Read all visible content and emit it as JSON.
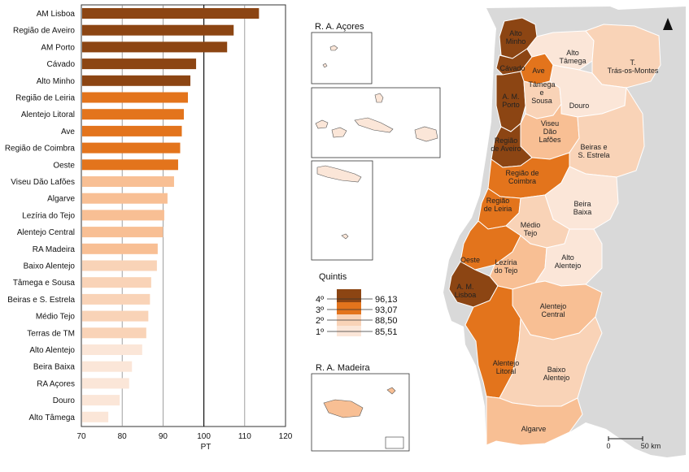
{
  "chart_data": {
    "type": "bar",
    "orientation": "horizontal",
    "xlabel": "PT",
    "xlim": [
      70,
      120
    ],
    "xticks": [
      70,
      80,
      90,
      100,
      110,
      120
    ],
    "reference_line": 100,
    "categories": [
      "AM Lisboa",
      "Região de Aveiro",
      "AM Porto",
      "Cávado",
      "Alto Minho",
      "Região de Leiria",
      "Alentejo Litoral",
      "Ave",
      "Região de Coimbra",
      "Oeste",
      "Viseu Dão Lafões",
      "Algarve",
      "Lezíria do Tejo",
      "Alentejo Central",
      "RA Madeira",
      "Baixo Alentejo",
      "Tâmega e Sousa",
      "Beiras e S. Estrela",
      "Médio Tejo",
      "Terras de TM",
      "Alto Alentejo",
      "Beira Baixa",
      "RA Açores",
      "Douro",
      "Alto Tâmega"
    ],
    "values": [
      113.5,
      107.3,
      105.7,
      98.1,
      96.7,
      96.1,
      95.1,
      94.6,
      94.2,
      93.7,
      92.7,
      91.1,
      90.3,
      90.0,
      88.7,
      88.5,
      87.1,
      86.8,
      86.4,
      85.9,
      84.9,
      82.4,
      81.7,
      79.4,
      76.6
    ],
    "quintile": [
      4,
      4,
      4,
      4,
      4,
      3,
      3,
      3,
      3,
      3,
      2,
      2,
      2,
      2,
      2,
      1,
      1,
      1,
      1,
      1,
      0,
      0,
      0,
      0,
      0
    ]
  },
  "palette": [
    "#fbe6d8",
    "#f9d3b7",
    "#f8bf94",
    "#e3741c",
    "#8c4513"
  ],
  "legend": {
    "title": "Quintis",
    "items": [
      {
        "label": "4º",
        "value": "96,13"
      },
      {
        "label": "3º",
        "value": "93,07"
      },
      {
        "label": "2º",
        "value": "88,50"
      },
      {
        "label": "1º",
        "value": "85,51"
      }
    ]
  },
  "map": {
    "inset_acores": "R. A. Açores",
    "inset_madeira": "R. A. Madeira",
    "scale_start": "0",
    "scale_end": "50 km",
    "regions": [
      {
        "name": "Alto Minho",
        "lines": [
          "Alto",
          "Minho"
        ],
        "q": 4
      },
      {
        "name": "Cávado",
        "lines": [
          "Cávado"
        ],
        "q": 4
      },
      {
        "name": "Ave",
        "lines": [
          "Ave"
        ],
        "q": 3
      },
      {
        "name": "Alto Tâmega",
        "lines": [
          "Alto",
          "Tâmega"
        ],
        "q": 0
      },
      {
        "name": "T. Trás-os-Montes",
        "lines": [
          "T.",
          "Trás-os-Montes"
        ],
        "q": 1
      },
      {
        "name": "A. M. Porto",
        "lines": [
          "A. M.",
          "Porto"
        ],
        "q": 4
      },
      {
        "name": "Tâmega e Sousa",
        "lines": [
          "Tâmega",
          "e",
          "Sousa"
        ],
        "q": 1
      },
      {
        "name": "Douro",
        "lines": [
          "Douro"
        ],
        "q": 0
      },
      {
        "name": "Viseu Dão Lafões",
        "lines": [
          "Viseu",
          "Dão",
          "Lafões"
        ],
        "q": 2
      },
      {
        "name": "Beiras e S. Estrela",
        "lines": [
          "Beiras e",
          "S. Estrela"
        ],
        "q": 1
      },
      {
        "name": "Região de Aveiro",
        "lines": [
          "Região",
          "de Aveiro"
        ],
        "q": 4
      },
      {
        "name": "Região de Coimbra",
        "lines": [
          "Região de",
          "Coimbra"
        ],
        "q": 3
      },
      {
        "name": "Região de Leiria",
        "lines": [
          "Região",
          "de Leiria"
        ],
        "q": 3
      },
      {
        "name": "Beira Baixa",
        "lines": [
          "Beira",
          "Baixa"
        ],
        "q": 0
      },
      {
        "name": "Médio Tejo",
        "lines": [
          "Médio",
          "Tejo"
        ],
        "q": 1
      },
      {
        "name": "Oeste",
        "lines": [
          "Oeste"
        ],
        "q": 3
      },
      {
        "name": "Lezíria do Tejo",
        "lines": [
          "Lezíria",
          "do Tejo"
        ],
        "q": 2
      },
      {
        "name": "Alto Alentejo",
        "lines": [
          "Alto",
          "Alentejo"
        ],
        "q": 0
      },
      {
        "name": "A. M. Lisboa",
        "lines": [
          "A. M.",
          "Lisboa"
        ],
        "q": 4
      },
      {
        "name": "Alentejo Central",
        "lines": [
          "Alentejo",
          "Central"
        ],
        "q": 2
      },
      {
        "name": "Alentejo Litoral",
        "lines": [
          "Alentejo",
          "Litoral"
        ],
        "q": 3
      },
      {
        "name": "Baixo Alentejo",
        "lines": [
          "Baixo",
          "Alentejo"
        ],
        "q": 1
      },
      {
        "name": "Algarve",
        "lines": [
          "Algarve"
        ],
        "q": 2
      }
    ]
  }
}
